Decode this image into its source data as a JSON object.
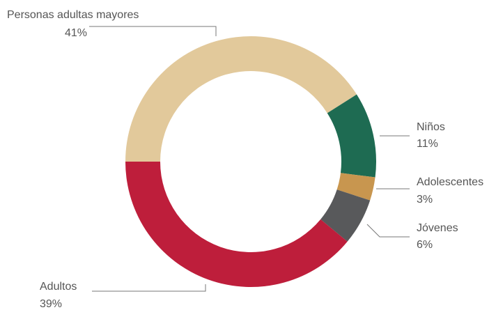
{
  "chart_data": {
    "type": "donut",
    "categories": [
      "Personas adultas mayores",
      "Niños",
      "Adolescentes",
      "Jóvenes",
      "Adultos"
    ],
    "values": [
      41,
      11,
      3,
      6,
      39
    ],
    "value_labels": [
      "41%",
      "11%",
      "3%",
      "6%",
      "39%"
    ],
    "colors": [
      "#e2c99b",
      "#1e6b52",
      "#c8964f",
      "#58595b",
      "#be1e3b"
    ]
  }
}
